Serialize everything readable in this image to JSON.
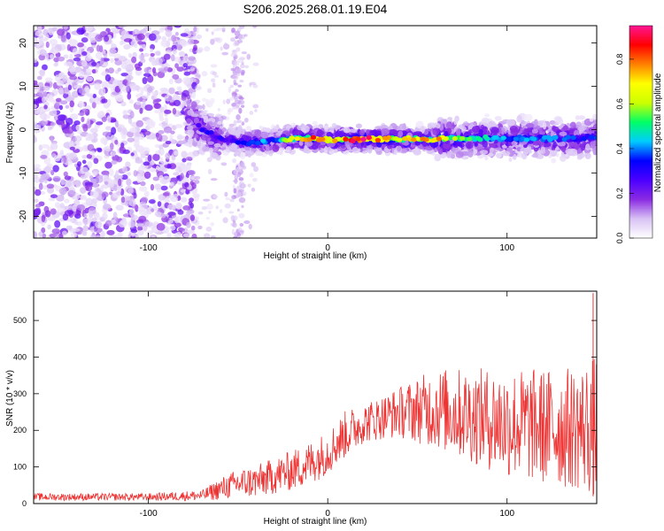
{
  "figure_title": "S206.2025.268.01.19.E04",
  "chart_data": [
    {
      "type": "heatmap",
      "title": "S206.2025.268.01.19.E04",
      "xlabel": "Height of straight line (km)",
      "ylabel": "Frequency (Hz)",
      "xlim": [
        -164,
        150
      ],
      "ylim": [
        -25,
        24
      ],
      "xticks": [
        -100,
        0,
        100
      ],
      "yticks": [
        -20,
        -10,
        0,
        10,
        20
      ],
      "colorbar": {
        "label": "Normalized spectral amplitude",
        "range": [
          0,
          0.95
        ],
        "ticks": [
          "0.0",
          "0.2",
          "0.4",
          "0.6",
          "0.8"
        ],
        "colormap": [
          "#ffffff",
          "#d8c2f4",
          "#8a2be2",
          "#4b00ff",
          "#0000ff",
          "#00ccff",
          "#00ff66",
          "#ccff00",
          "#ffff00",
          "#ff8000",
          "#ff0000",
          "#ff1493"
        ]
      },
      "ridge": {
        "description_points_x": [
          -75,
          -70,
          -60,
          -45,
          -30,
          -20,
          -10,
          0,
          10,
          20,
          40,
          60,
          80,
          100,
          120,
          140,
          148
        ],
        "description_points_freq": [
          2,
          0,
          -2,
          -3,
          -2.5,
          -2,
          -2,
          -2.3,
          -2.3,
          -2.2,
          -2.2,
          -2.1,
          -2,
          -2,
          -2,
          -2,
          -1.5
        ],
        "peak_amplitude": [
          0.25,
          0.3,
          0.3,
          0.35,
          0.45,
          0.6,
          0.8,
          0.7,
          0.85,
          0.95,
          0.7,
          0.75,
          0.5,
          0.4,
          0.4,
          0.35,
          0.35
        ]
      },
      "noise_region_x": [
        -164,
        -73
      ],
      "noise_strip_x": -50
    },
    {
      "type": "line",
      "xlabel": "Height of straight line (km)",
      "ylabel": "SNR (10 * v/v)",
      "xlim": [
        -164,
        150
      ],
      "ylim": [
        0,
        580
      ],
      "xticks": [
        -100,
        0,
        100
      ],
      "yticks": [
        0,
        100,
        200,
        300,
        400,
        500
      ],
      "color": "#ee3333",
      "envelope_x": [
        -164,
        -130,
        -100,
        -70,
        -60,
        -50,
        -40,
        -30,
        -20,
        -10,
        0,
        10,
        20,
        30,
        40,
        50,
        60,
        80,
        100,
        120,
        140,
        150
      ],
      "envelope_mean": [
        18,
        18,
        18,
        22,
        40,
        55,
        60,
        75,
        90,
        110,
        140,
        190,
        220,
        235,
        250,
        255,
        260,
        240,
        220,
        210,
        205,
        210
      ],
      "envelope_spread": [
        10,
        10,
        10,
        15,
        30,
        40,
        45,
        50,
        55,
        60,
        60,
        65,
        55,
        60,
        70,
        90,
        110,
        130,
        150,
        160,
        170,
        200
      ],
      "notable_spike_x": 148,
      "notable_spike_y": 575
    }
  ]
}
